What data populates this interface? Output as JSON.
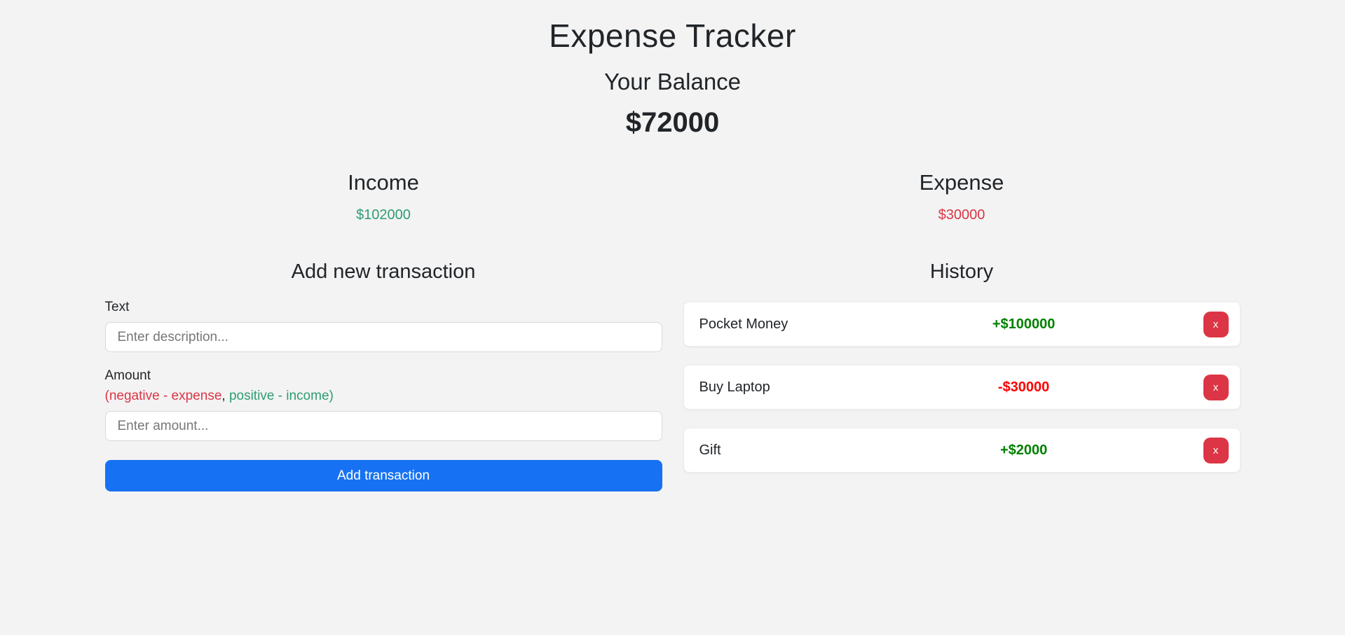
{
  "app": {
    "title": "Expense Tracker",
    "balance_label": "Your Balance",
    "balance_value": "$72000"
  },
  "summary": {
    "income": {
      "label": "Income",
      "value": "$102000"
    },
    "expense": {
      "label": "Expense",
      "value": "$30000"
    }
  },
  "form": {
    "heading": "Add new transaction",
    "text_field": {
      "label": "Text",
      "placeholder": "Enter description...",
      "value": ""
    },
    "amount_field": {
      "label": "Amount",
      "hint_negative": "(negative - expense",
      "hint_separator": ", ",
      "hint_positive": "positive - income)",
      "placeholder": "Enter amount...",
      "value": ""
    },
    "submit_label": "Add transaction"
  },
  "history": {
    "heading": "History",
    "delete_label": "x",
    "transactions": [
      {
        "name": "Pocket Money",
        "amount": "+$100000",
        "type": "income"
      },
      {
        "name": "Buy Laptop",
        "amount": "-$30000",
        "type": "expense"
      },
      {
        "name": "Gift",
        "amount": "+$2000",
        "type": "income"
      }
    ]
  },
  "colors": {
    "background": "#f3f3f3",
    "text": "#212529",
    "income_summary": "#2e9c72",
    "expense_summary": "#dc3545",
    "positive_amount": "#008000",
    "negative_amount": "#ff0000",
    "button_blue": "#1672f3",
    "delete_red": "#dc3545"
  }
}
